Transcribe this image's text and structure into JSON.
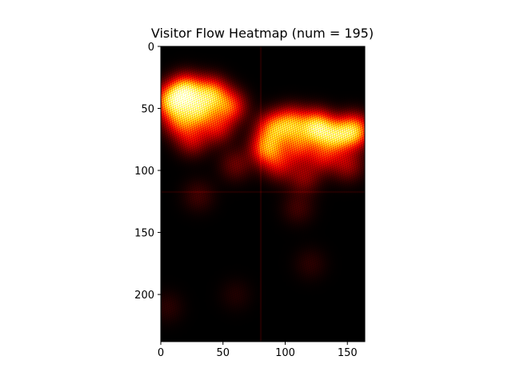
{
  "chart_data": {
    "type": "heatmap",
    "title": "Visitor Flow Heatmap (num = 195)",
    "xlabel": "",
    "ylabel": "",
    "xlim": [
      0,
      164
    ],
    "ylim": [
      238,
      0
    ],
    "colormap": "hot",
    "x_ticks": [
      0,
      50,
      100,
      150
    ],
    "y_ticks": [
      0,
      50,
      100,
      150,
      200
    ],
    "x_tick_labels": [
      "0",
      "50",
      "100",
      "150"
    ],
    "y_tick_labels": [
      "0",
      "50",
      "100",
      "150",
      "200"
    ],
    "divider_lines": {
      "vertical_x": 80,
      "horizontal_y": 117
    },
    "hotspots": [
      {
        "x": 20,
        "y": 36,
        "intensity": 1.0
      },
      {
        "x": 8,
        "y": 44,
        "intensity": 0.85
      },
      {
        "x": 40,
        "y": 38,
        "intensity": 0.8
      },
      {
        "x": 30,
        "y": 52,
        "intensity": 0.75
      },
      {
        "x": 55,
        "y": 48,
        "intensity": 0.6
      },
      {
        "x": 15,
        "y": 60,
        "intensity": 0.55
      },
      {
        "x": 45,
        "y": 65,
        "intensity": 0.4
      },
      {
        "x": 25,
        "y": 75,
        "intensity": 0.35
      },
      {
        "x": 125,
        "y": 65,
        "intensity": 1.0
      },
      {
        "x": 155,
        "y": 68,
        "intensity": 0.9
      },
      {
        "x": 105,
        "y": 62,
        "intensity": 0.7
      },
      {
        "x": 90,
        "y": 66,
        "intensity": 0.65
      },
      {
        "x": 85,
        "y": 82,
        "intensity": 0.7
      },
      {
        "x": 140,
        "y": 72,
        "intensity": 0.75
      },
      {
        "x": 110,
        "y": 80,
        "intensity": 0.5
      },
      {
        "x": 130,
        "y": 88,
        "intensity": 0.4
      },
      {
        "x": 95,
        "y": 95,
        "intensity": 0.35
      },
      {
        "x": 150,
        "y": 95,
        "intensity": 0.3
      },
      {
        "x": 115,
        "y": 105,
        "intensity": 0.25
      },
      {
        "x": 60,
        "y": 95,
        "intensity": 0.2
      },
      {
        "x": 30,
        "y": 120,
        "intensity": 0.12
      },
      {
        "x": 110,
        "y": 130,
        "intensity": 0.12
      },
      {
        "x": 120,
        "y": 175,
        "intensity": 0.08
      },
      {
        "x": 60,
        "y": 200,
        "intensity": 0.06
      },
      {
        "x": 5,
        "y": 210,
        "intensity": 0.08
      }
    ]
  }
}
